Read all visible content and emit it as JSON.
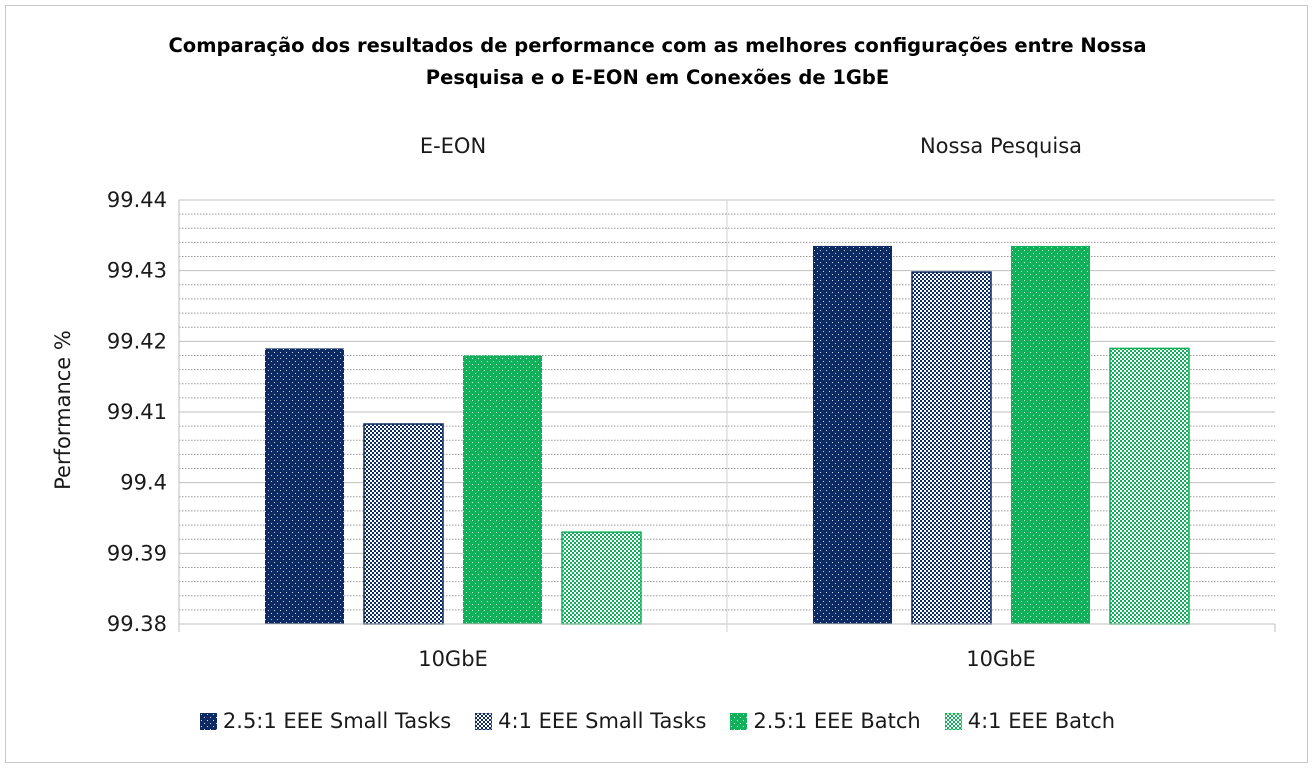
{
  "chart_data": {
    "type": "bar",
    "title_lines": [
      "Comparação dos resultados de performance com as melhores configurações  entre Nossa",
      "Pesquisa e o E-EON em Conexões de 1GbE"
    ],
    "ylabel": "Performance %",
    "ylim": [
      99.38,
      99.44
    ],
    "yticks": [
      "99.38",
      "99.39",
      "99.4",
      "99.41",
      "99.42",
      "99.43",
      "99.44"
    ],
    "grid": true,
    "legend_position": "bottom",
    "groups": [
      {
        "panel": "E-EON",
        "category": "10GbE",
        "values": [
          99.419,
          99.4083,
          99.418,
          99.393
        ]
      },
      {
        "panel": "Nossa Pesquisa",
        "category": "10GbE",
        "values": [
          99.4335,
          99.4298,
          99.4335,
          99.419
        ]
      }
    ],
    "series": [
      {
        "name": "2.5:1 EEE Small Tasks",
        "color": "#0d2a63",
        "pattern": "dots"
      },
      {
        "name": "4:1 EEE Small Tasks",
        "color": "#0d2a63",
        "pattern": "checker"
      },
      {
        "name": "2.5:1 EEE Batch",
        "color": "#11b05a",
        "pattern": "dots"
      },
      {
        "name": "4:1 EEE Batch",
        "color": "#11b05a",
        "pattern": "checker"
      }
    ]
  }
}
